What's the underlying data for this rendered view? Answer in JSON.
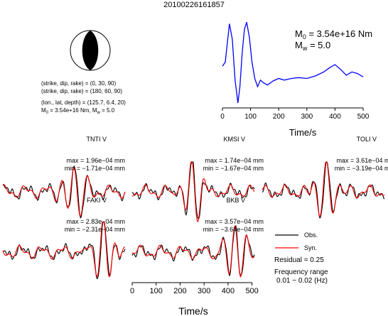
{
  "chart_data": {
    "type": "line",
    "title": "20100226161857",
    "mechanism": {
      "planes": [
        {
          "label": "(strike, dip, rake) = (0, 30, 90)"
        },
        {
          "label": "(strike, dip, rake) = (180, 60, 90)"
        }
      ],
      "location_label": "(lon., lat, depth) = (125.7, 6.4, 20)",
      "moment_line": {
        "prefix": "M",
        "sub": "0",
        "rest": " = 3.54e+16 Nm, M",
        "sub2": "w",
        "rest2": " = 5.0"
      }
    },
    "source_time_function": {
      "type": "line",
      "color": "#0000ff",
      "m0": {
        "main": "M",
        "sub": "0",
        "rest": " = 3.54e+16 Nm"
      },
      "mw": {
        "main": "M",
        "sub": "w",
        "rest": " = 5.0"
      },
      "xlabel": "Time/s",
      "xlim": [
        0,
        510
      ],
      "xticks": [
        "0",
        "100",
        "200",
        "300",
        "400",
        "500"
      ],
      "x": [
        0,
        10,
        17,
        25,
        35,
        45,
        55,
        62,
        70,
        78,
        86,
        96,
        105,
        115,
        125,
        135,
        145,
        160,
        180,
        200,
        220,
        245,
        270,
        300,
        330,
        360,
        380,
        400,
        420,
        440,
        460,
        480,
        500
      ],
      "y": [
        0.45,
        0.5,
        0.72,
        0.97,
        0.78,
        0.28,
        0.0,
        0.2,
        0.6,
        0.9,
        0.99,
        0.8,
        0.5,
        0.3,
        0.2,
        0.28,
        0.25,
        0.22,
        0.27,
        0.3,
        0.28,
        0.3,
        0.31,
        0.3,
        0.33,
        0.38,
        0.43,
        0.47,
        0.41,
        0.34,
        0.38,
        0.36,
        0.32
      ],
      "ylim": [
        0,
        1
      ]
    },
    "waveforms": {
      "legend": {
        "observed": "Obs.",
        "synthetic": "Syn."
      },
      "observed_color": "#000000",
      "synthetic_color": "#ff0000",
      "residual_label": "Residual = 0.25",
      "frequency_label": "Frequency range",
      "frequency_range": "0.01 − 0.02 (Hz)",
      "xlabel": "Time/s",
      "xlim": [
        0,
        510
      ],
      "xticks": [
        "0",
        "100",
        "200",
        "300",
        "400",
        "500"
      ],
      "stations": [
        {
          "name": "TNTI V",
          "max": "max = 1.96e−04 mm",
          "min": "min = −1.71e−04 mm",
          "peak_time": 300,
          "phase": 0.2
        },
        {
          "name": "KMSI V",
          "max": "max = 1.74e−04 mm",
          "min": "min = −1.67e−04 mm",
          "peak_time": 250,
          "phase": 1.1
        },
        {
          "name": "TOLI V",
          "max": "max = 3.61e−04 mm",
          "min": "min = −3.19e−04 mm",
          "peak_time": 270,
          "phase": 2.3
        },
        {
          "name": "FAKI V",
          "max": "max = 2.83e−04 mm",
          "min": "min = −2.31e−04 mm",
          "peak_time": 420,
          "phase": 0.7
        },
        {
          "name": "BKB V",
          "max": "max = 3.57e−04 mm",
          "min": "min = −3.64e−04 mm",
          "peak_time": 430,
          "phase": 1.7
        }
      ]
    }
  }
}
